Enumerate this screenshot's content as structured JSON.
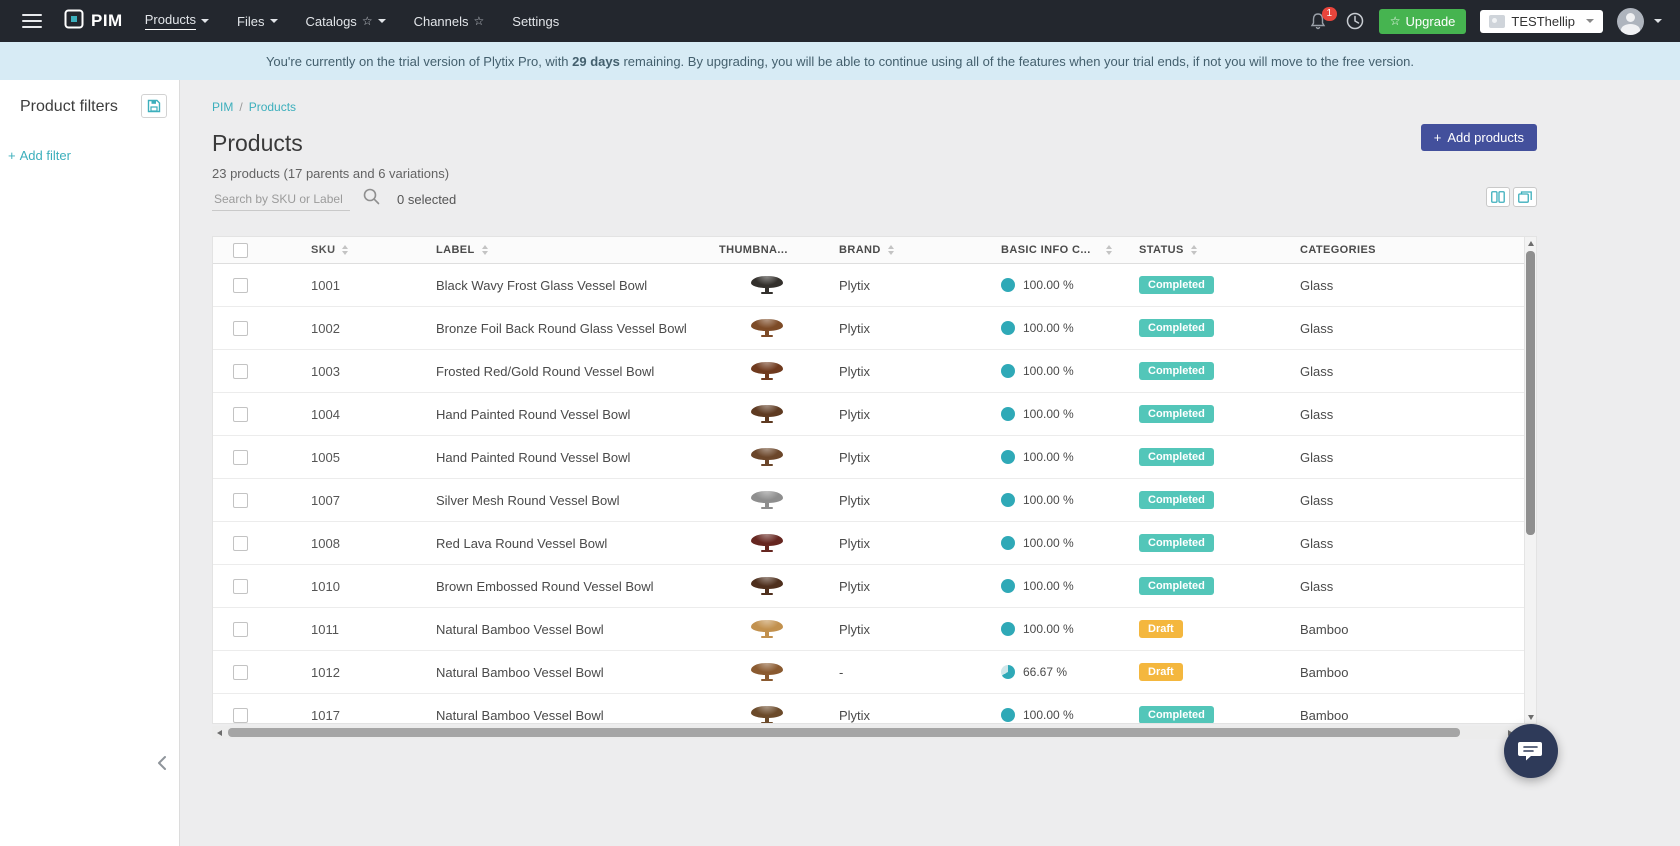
{
  "colors": {
    "teal": "#2fa9b7",
    "pie_remainder": "#cfe7ea",
    "navy_button": "#43509c",
    "green_button": "#46b450",
    "completed_badge": "#53c6b9",
    "draft_badge": "#f4b73e"
  },
  "icons": {
    "star": "☆",
    "plus": "+"
  },
  "navbar": {
    "brand": "PIM",
    "items": [
      {
        "label": "Products"
      },
      {
        "label": "Files"
      },
      {
        "label": "Catalogs"
      },
      {
        "label": "Channels"
      },
      {
        "label": "Settings"
      }
    ],
    "notification_badge": "1",
    "upgrade_label": "Upgrade",
    "account_name": "TESThellip"
  },
  "trial_banner": {
    "text_before": "You're currently on the trial version of Plytix Pro, with ",
    "days_remaining": "29 days",
    "text_after": " remaining. By upgrading, you will be able to continue using all of the features when your trial ends, if not you will move to the free version."
  },
  "sidebar": {
    "title": "Product filters",
    "add_filter_label": "Add filter"
  },
  "main": {
    "breadcrumb": {
      "root": "PIM",
      "separator": "/",
      "current": "Products"
    },
    "title": "Products",
    "subtitle": "23 products (17 parents and 6 variations)",
    "search_placeholder": "Search by SKU or Label",
    "selected_count": "0 selected",
    "add_products_label": "Add products"
  },
  "table": {
    "columns": [
      "SKU",
      "LABEL",
      "THUMBNA...",
      "BRAND",
      "BASIC INFO C...",
      "STATUS",
      "CATEGORIES"
    ],
    "rows": [
      {
        "sku": "1001",
        "label": "Black Wavy Frost Glass Vessel Bowl",
        "brand": "Plytix",
        "completeness": "100.00 %",
        "completeness_pct": 100,
        "status": "Completed",
        "status_type": "completed",
        "categories": "Glass",
        "thumb_color": "#33302c"
      },
      {
        "sku": "1002",
        "label": "Bronze Foil Back Round Glass Vessel Bowl",
        "brand": "Plytix",
        "completeness": "100.00 %",
        "completeness_pct": 100,
        "status": "Completed",
        "status_type": "completed",
        "categories": "Glass",
        "thumb_color": "#7d4b27"
      },
      {
        "sku": "1003",
        "label": "Frosted Red/Gold Round Vessel Bowl",
        "brand": "Plytix",
        "completeness": "100.00 %",
        "completeness_pct": 100,
        "status": "Completed",
        "status_type": "completed",
        "categories": "Glass",
        "thumb_color": "#6f3a1e"
      },
      {
        "sku": "1004",
        "label": "Hand Painted Round Vessel Bowl",
        "brand": "Plytix",
        "completeness": "100.00 %",
        "completeness_pct": 100,
        "status": "Completed",
        "status_type": "completed",
        "categories": "Glass",
        "thumb_color": "#5e3a21"
      },
      {
        "sku": "1005",
        "label": "Hand Painted Round Vessel Bowl",
        "brand": "Plytix",
        "completeness": "100.00 %",
        "completeness_pct": 100,
        "status": "Completed",
        "status_type": "completed",
        "categories": "Glass",
        "thumb_color": "#6b462a"
      },
      {
        "sku": "1007",
        "label": "Silver Mesh Round Vessel Bowl",
        "brand": "Plytix",
        "completeness": "100.00 %",
        "completeness_pct": 100,
        "status": "Completed",
        "status_type": "completed",
        "categories": "Glass",
        "thumb_color": "#8e8e8e"
      },
      {
        "sku": "1008",
        "label": "Red Lava Round Vessel Bowl",
        "brand": "Plytix",
        "completeness": "100.00 %",
        "completeness_pct": 100,
        "status": "Completed",
        "status_type": "completed",
        "categories": "Glass",
        "thumb_color": "#662620"
      },
      {
        "sku": "1010",
        "label": "Brown Embossed Round Vessel Bowl",
        "brand": "Plytix",
        "completeness": "100.00 %",
        "completeness_pct": 100,
        "status": "Completed",
        "status_type": "completed",
        "categories": "Glass",
        "thumb_color": "#4e2f1d"
      },
      {
        "sku": "1011",
        "label": "Natural Bamboo Vessel Bowl",
        "brand": "Plytix",
        "completeness": "100.00 %",
        "completeness_pct": 100,
        "status": "Draft",
        "status_type": "draft",
        "categories": "Bamboo",
        "thumb_color": "#c2914e"
      },
      {
        "sku": "1012",
        "label": "Natural Bamboo Vessel Bowl",
        "brand": "-",
        "completeness": "66.67 %",
        "completeness_pct": 66.67,
        "status": "Draft",
        "status_type": "draft",
        "categories": "Bamboo",
        "thumb_color": "#8a5a30"
      },
      {
        "sku": "1017",
        "label": "Natural Bamboo Vessel Bowl",
        "brand": "Plytix",
        "completeness": "100.00 %",
        "completeness_pct": 100,
        "status": "Completed",
        "status_type": "completed",
        "categories": "Bamboo",
        "thumb_color": "#6b4a2a"
      }
    ]
  }
}
